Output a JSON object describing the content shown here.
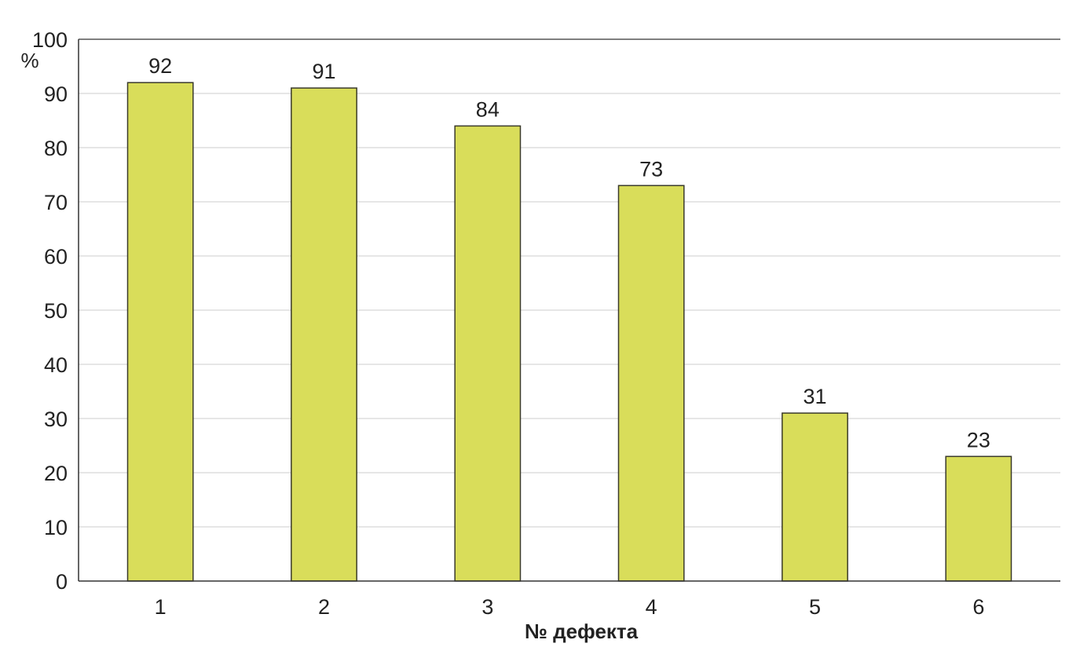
{
  "chart_data": {
    "type": "bar",
    "title": "",
    "xlabel": "№ дефекта",
    "ylabel": "%",
    "categories": [
      "1",
      "2",
      "3",
      "4",
      "5",
      "6"
    ],
    "values": [
      92,
      91,
      84,
      73,
      31,
      23
    ],
    "data_labels": [
      "92",
      "91",
      "84",
      "73",
      "31",
      "23"
    ],
    "ylim": [
      0,
      100
    ],
    "yticks": [
      "0",
      "10",
      "20",
      "30",
      "40",
      "50",
      "60",
      "70",
      "80",
      "90",
      "100"
    ],
    "grid": true,
    "legend": "none",
    "bar_color": "#d9dd5a",
    "bar_edge_color": "#3a3a2a",
    "grid_color": "#d6d6d6"
  }
}
